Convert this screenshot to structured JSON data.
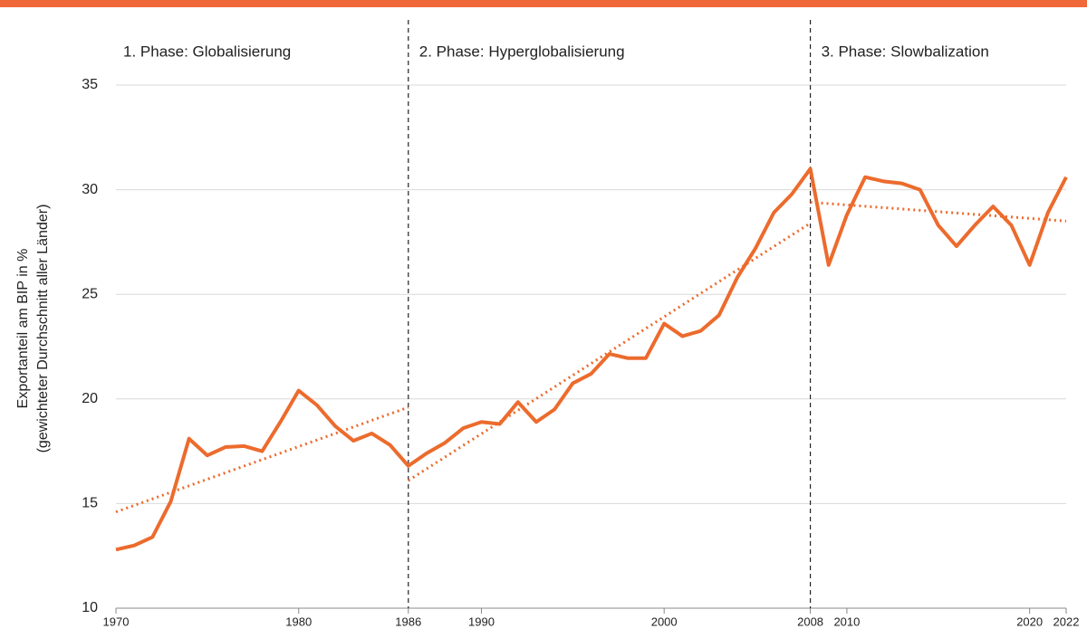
{
  "chart_data": {
    "type": "line",
    "ylabel": [
      "Exportanteil am BIP in %",
      "(gewichteter Durchschnitt aller Länder)"
    ],
    "xlim": [
      1970,
      2022
    ],
    "xticks": [
      1970,
      1980,
      1986,
      1990,
      2000,
      2008,
      2010,
      2020,
      2022
    ],
    "ylim": [
      10,
      35
    ],
    "yticks": [
      10,
      15,
      20,
      25,
      30,
      35
    ],
    "grid": true,
    "vlines": [
      1986,
      2008
    ],
    "annotations": [
      "1. Phase: Globalisierung",
      "2. Phase: Hyperglobalisierung",
      "3. Phase: Slowbalization"
    ],
    "series": [
      {
        "style": "solid",
        "color": "#ec6b2d",
        "x": [
          1970,
          1971,
          1972,
          1973,
          1974,
          1975,
          1976,
          1977,
          1978,
          1979,
          1980,
          1981,
          1982,
          1983,
          1984,
          1985,
          1986,
          1987,
          1988,
          1989,
          1990,
          1991,
          1992,
          1993,
          1994,
          1995,
          1996,
          1997,
          1998,
          1999,
          2000,
          2001,
          2002,
          2003,
          2004,
          2005,
          2006,
          2007,
          2008,
          2009,
          2010,
          2011,
          2012,
          2013,
          2014,
          2015,
          2016,
          2017,
          2018,
          2019,
          2020,
          2021,
          2022
        ],
        "values": [
          12.8,
          13.0,
          13.4,
          15.1,
          18.1,
          17.3,
          17.7,
          17.75,
          17.5,
          18.9,
          20.4,
          19.7,
          18.7,
          18.0,
          18.35,
          17.8,
          16.8,
          17.4,
          17.9,
          18.6,
          18.9,
          18.8,
          19.85,
          18.9,
          19.5,
          20.75,
          21.2,
          22.15,
          21.95,
          21.95,
          23.6,
          23.0,
          23.25,
          24.0,
          25.8,
          27.2,
          28.9,
          29.8,
          31.0,
          26.4,
          28.8,
          30.6,
          30.4,
          30.3,
          30.0,
          28.3,
          27.3,
          28.3,
          29.2,
          28.3,
          26.4,
          28.9,
          30.6
        ]
      },
      {
        "style": "dotted",
        "color": "#ec6b2d",
        "x": [
          1970,
          1986
        ],
        "values": [
          14.6,
          19.6
        ]
      },
      {
        "style": "dotted",
        "color": "#ec6b2d",
        "x": [
          1986,
          2008
        ],
        "values": [
          16.1,
          28.4
        ]
      },
      {
        "style": "dotted",
        "color": "#ec6b2d",
        "x": [
          2008,
          2022
        ],
        "values": [
          29.4,
          28.5
        ]
      }
    ]
  }
}
